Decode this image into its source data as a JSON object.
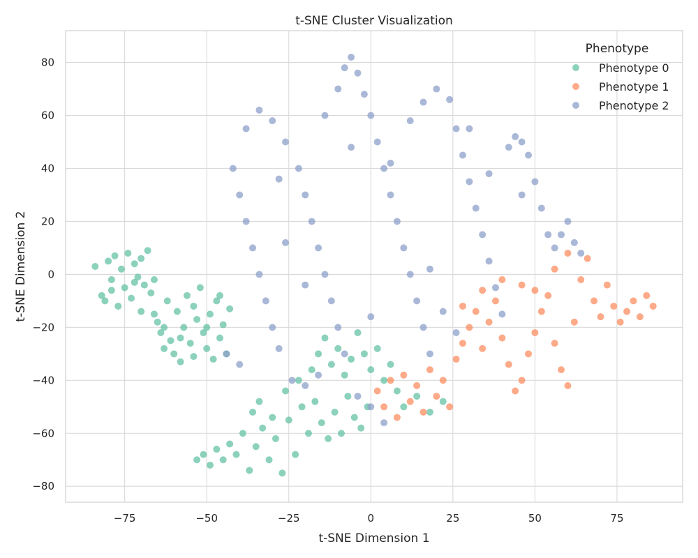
{
  "chart_data": {
    "type": "scatter",
    "title": "t-SNE Cluster Visualization",
    "xlabel": "t-SNE Dimension 1",
    "ylabel": "t-SNE Dimension 2",
    "xlim": [
      -93,
      95
    ],
    "ylim": [
      -86,
      92
    ],
    "xticks": [
      -75,
      -50,
      -25,
      0,
      25,
      50,
      75
    ],
    "yticks": [
      -80,
      -60,
      -40,
      -20,
      0,
      20,
      40,
      60,
      80
    ],
    "xtick_labels": [
      "−75",
      "−50",
      "−25",
      "0",
      "25",
      "50",
      "75"
    ],
    "ytick_labels": [
      "−80",
      "−60",
      "−40",
      "−20",
      "0",
      "20",
      "40",
      "60",
      "80"
    ],
    "grid": true,
    "legend": {
      "title": "Phenotype",
      "placement": "top-right",
      "entries": [
        "Phenotype 0",
        "Phenotype 1",
        "Phenotype 2"
      ]
    },
    "series": [
      {
        "name": "Phenotype 0",
        "color": "#66c2a5",
        "points": [
          [
            -84,
            3
          ],
          [
            -82,
            -8
          ],
          [
            -80,
            5
          ],
          [
            -79,
            -2
          ],
          [
            -78,
            7
          ],
          [
            -77,
            -12
          ],
          [
            -76,
            2
          ],
          [
            -75,
            -5
          ],
          [
            -74,
            8
          ],
          [
            -73,
            -9
          ],
          [
            -72,
            4
          ],
          [
            -71,
            -1
          ],
          [
            -70,
            6
          ],
          [
            -69,
            -4
          ],
          [
            -68,
            9
          ],
          [
            -67,
            -7
          ],
          [
            -66,
            -15
          ],
          [
            -65,
            -18
          ],
          [
            -64,
            -22
          ],
          [
            -63,
            -28
          ],
          [
            -62,
            -10
          ],
          [
            -61,
            -25
          ],
          [
            -60,
            -30
          ],
          [
            -59,
            -14
          ],
          [
            -58,
            -33
          ],
          [
            -57,
            -20
          ],
          [
            -56,
            -8
          ],
          [
            -55,
            -26
          ],
          [
            -54,
            -12
          ],
          [
            -53,
            -17
          ],
          [
            -52,
            -5
          ],
          [
            -51,
            -22
          ],
          [
            -50,
            -28
          ],
          [
            -49,
            -15
          ],
          [
            -48,
            -32
          ],
          [
            -47,
            -10
          ],
          [
            -46,
            -24
          ],
          [
            -45,
            -19
          ],
          [
            -44,
            -30
          ],
          [
            -43,
            -13
          ],
          [
            -81,
            -10
          ],
          [
            -79,
            -6
          ],
          [
            -72,
            -3
          ],
          [
            -70,
            -14
          ],
          [
            -66,
            -2
          ],
          [
            -63,
            -20
          ],
          [
            -58,
            -24
          ],
          [
            -54,
            -31
          ],
          [
            -50,
            -20
          ],
          [
            -46,
            -8
          ],
          [
            -53,
            -70
          ],
          [
            -51,
            -68
          ],
          [
            -49,
            -72
          ],
          [
            -47,
            -66
          ],
          [
            -45,
            -70
          ],
          [
            -43,
            -64
          ],
          [
            -41,
            -68
          ],
          [
            -39,
            -60
          ],
          [
            -37,
            -74
          ],
          [
            -35,
            -65
          ],
          [
            -33,
            -58
          ],
          [
            -31,
            -70
          ],
          [
            -29,
            -62
          ],
          [
            -27,
            -75
          ],
          [
            -25,
            -55
          ],
          [
            -23,
            -68
          ],
          [
            -21,
            -50
          ],
          [
            -19,
            -60
          ],
          [
            -17,
            -48
          ],
          [
            -15,
            -56
          ],
          [
            -13,
            -62
          ],
          [
            -11,
            -52
          ],
          [
            -9,
            -60
          ],
          [
            -7,
            -46
          ],
          [
            -5,
            -54
          ],
          [
            -3,
            -58
          ],
          [
            -1,
            -50
          ],
          [
            -36,
            -52
          ],
          [
            -34,
            -48
          ],
          [
            -30,
            -54
          ],
          [
            -26,
            -44
          ],
          [
            -22,
            -40
          ],
          [
            -18,
            -36
          ],
          [
            -16,
            -30
          ],
          [
            -14,
            -24
          ],
          [
            -12,
            -34
          ],
          [
            -10,
            -28
          ],
          [
            -8,
            -38
          ],
          [
            -6,
            -32
          ],
          [
            -4,
            -22
          ],
          [
            -2,
            -30
          ],
          [
            0,
            -36
          ],
          [
            2,
            -28
          ],
          [
            4,
            -40
          ],
          [
            6,
            -34
          ],
          [
            8,
            -44
          ],
          [
            10,
            -50
          ],
          [
            14,
            -46
          ],
          [
            18,
            -52
          ],
          [
            22,
            -48
          ]
        ]
      },
      {
        "name": "Phenotype 1",
        "color": "#fc8d62",
        "points": [
          [
            2,
            -44
          ],
          [
            4,
            -50
          ],
          [
            6,
            -40
          ],
          [
            8,
            -54
          ],
          [
            10,
            -38
          ],
          [
            12,
            -48
          ],
          [
            14,
            -42
          ],
          [
            16,
            -52
          ],
          [
            18,
            -36
          ],
          [
            20,
            -46
          ],
          [
            22,
            -40
          ],
          [
            24,
            -50
          ],
          [
            26,
            -32
          ],
          [
            28,
            -26
          ],
          [
            30,
            -20
          ],
          [
            32,
            -14
          ],
          [
            34,
            -28
          ],
          [
            36,
            -18
          ],
          [
            38,
            -10
          ],
          [
            40,
            -24
          ],
          [
            42,
            -34
          ],
          [
            44,
            -44
          ],
          [
            46,
            -40
          ],
          [
            48,
            -30
          ],
          [
            50,
            -22
          ],
          [
            52,
            -14
          ],
          [
            54,
            -8
          ],
          [
            56,
            -26
          ],
          [
            58,
            -36
          ],
          [
            60,
            -42
          ],
          [
            62,
            -18
          ],
          [
            64,
            -2
          ],
          [
            66,
            6
          ],
          [
            68,
            -10
          ],
          [
            70,
            -16
          ],
          [
            72,
            -4
          ],
          [
            74,
            -12
          ],
          [
            76,
            -18
          ],
          [
            78,
            -14
          ],
          [
            80,
            -10
          ],
          [
            82,
            -16
          ],
          [
            84,
            -8
          ],
          [
            86,
            -12
          ],
          [
            60,
            8
          ],
          [
            56,
            2
          ],
          [
            50,
            -6
          ],
          [
            46,
            -4
          ],
          [
            40,
            -2
          ],
          [
            34,
            -6
          ],
          [
            28,
            -12
          ]
        ]
      },
      {
        "name": "Phenotype 2",
        "color": "#8da0cb",
        "points": [
          [
            -42,
            40
          ],
          [
            -40,
            30
          ],
          [
            -38,
            20
          ],
          [
            -36,
            10
          ],
          [
            -34,
            0
          ],
          [
            -32,
            -10
          ],
          [
            -30,
            -20
          ],
          [
            -28,
            -28
          ],
          [
            -38,
            55
          ],
          [
            -34,
            62
          ],
          [
            -30,
            58
          ],
          [
            -26,
            50
          ],
          [
            -22,
            40
          ],
          [
            -20,
            30
          ],
          [
            -18,
            20
          ],
          [
            -16,
            10
          ],
          [
            -14,
            0
          ],
          [
            -12,
            -10
          ],
          [
            -10,
            -20
          ],
          [
            -8,
            -30
          ],
          [
            -14,
            60
          ],
          [
            -10,
            70
          ],
          [
            -8,
            78
          ],
          [
            -6,
            82
          ],
          [
            -4,
            76
          ],
          [
            -2,
            68
          ],
          [
            0,
            60
          ],
          [
            2,
            50
          ],
          [
            4,
            40
          ],
          [
            6,
            30
          ],
          [
            8,
            20
          ],
          [
            10,
            10
          ],
          [
            12,
            0
          ],
          [
            14,
            -10
          ],
          [
            16,
            -20
          ],
          [
            18,
            -30
          ],
          [
            12,
            58
          ],
          [
            16,
            65
          ],
          [
            20,
            70
          ],
          [
            24,
            66
          ],
          [
            26,
            55
          ],
          [
            28,
            45
          ],
          [
            30,
            35
          ],
          [
            32,
            25
          ],
          [
            34,
            15
          ],
          [
            36,
            5
          ],
          [
            38,
            -5
          ],
          [
            40,
            -15
          ],
          [
            42,
            48
          ],
          [
            44,
            52
          ],
          [
            46,
            50
          ],
          [
            48,
            45
          ],
          [
            50,
            35
          ],
          [
            52,
            25
          ],
          [
            54,
            15
          ],
          [
            56,
            10
          ],
          [
            58,
            15
          ],
          [
            60,
            20
          ],
          [
            62,
            12
          ],
          [
            64,
            8
          ],
          [
            -24,
            -40
          ],
          [
            -20,
            -42
          ],
          [
            -16,
            -38
          ],
          [
            -4,
            -46
          ],
          [
            0,
            -50
          ],
          [
            4,
            -56
          ],
          [
            -44,
            -30
          ],
          [
            -40,
            -34
          ],
          [
            -26,
            12
          ],
          [
            -28,
            36
          ],
          [
            -6,
            48
          ],
          [
            6,
            42
          ],
          [
            18,
            2
          ],
          [
            22,
            -14
          ],
          [
            26,
            -22
          ],
          [
            0,
            -16
          ],
          [
            -20,
            -4
          ],
          [
            30,
            55
          ],
          [
            36,
            38
          ],
          [
            46,
            30
          ]
        ]
      }
    ]
  }
}
